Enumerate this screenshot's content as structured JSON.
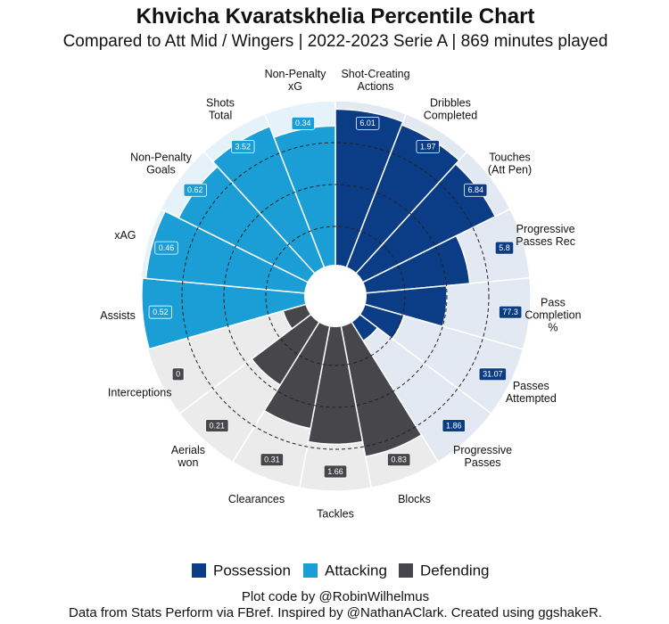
{
  "chart_data": {
    "type": "pizza",
    "title": "Khvicha Kvaratskhelia Percentile Chart",
    "subtitle": "Compared to Att Mid / Wingers | 2022-2023 Serie A | 869 minutes played",
    "rlim": [
      0,
      100
    ],
    "rticks": [
      25,
      50,
      75
    ],
    "series": [
      {
        "name": "Possession",
        "color": "#0b3d86",
        "background": "#e3e9f2",
        "categories": [
          "Shot-Creating\nActions",
          "Dribbles\nCompleted",
          "Touches\n(Att Pen)",
          "Progressive\nPasses Rec",
          "Pass\nCompletion\n%",
          "Passes\nAttempted",
          "Progressive\nPasses"
        ],
        "values": [
          95,
          93,
          90,
          64,
          50,
          26,
          15
        ],
        "stats": [
          6.01,
          1.97,
          6.84,
          5.8,
          77.3,
          31.07,
          1.86
        ]
      },
      {
        "name": "Attacking",
        "color": "#1b9ed6",
        "background": "#e5f2f9",
        "categories": [
          "Assists",
          "xAG",
          "Non-Penalty\nGoals",
          "Shots\nTotal",
          "Non-Penalty\nxG"
        ],
        "values": [
          99,
          97,
          88,
          92,
          85
        ],
        "stats": [
          0.52,
          0.46,
          0.62,
          3.52,
          0.34
        ]
      },
      {
        "name": "Defending",
        "color": "#47464b",
        "background": "#ebebeb",
        "categories": [
          "Blocks",
          "Tackles",
          "Clearances",
          "Aerials\nwon",
          "Interceptions"
        ],
        "values": [
          81,
          72,
          64,
          46,
          16
        ],
        "stats": [
          0.83,
          1.66,
          0.31,
          0.21,
          0
        ]
      }
    ],
    "caption": [
      "Plot code by @RobinWilhelmus",
      "Data from Stats Perform via FBref. Inspired by @NathanAClark. Created using ggshakeR."
    ]
  }
}
